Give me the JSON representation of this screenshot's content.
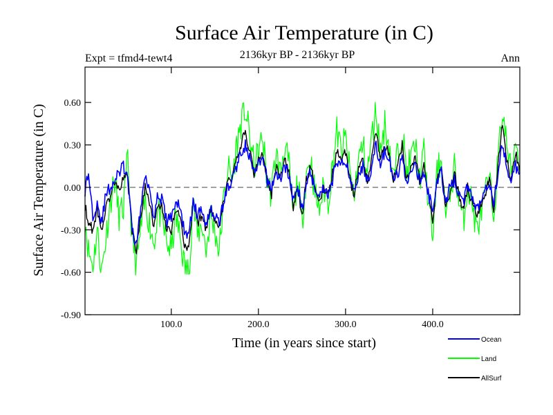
{
  "chart_data": {
    "type": "line",
    "title": "Surface Air Temperature (in C)",
    "subtitle": "2136kyr BP - 2136kyr BP",
    "expt_label": "Expt = tfmd4-tewt4",
    "season_label": "Ann",
    "xlabel": "Time (in years since start)",
    "ylabel": "Surface Air Temperature (in C)",
    "xlim": [
      1,
      500
    ],
    "ylim": [
      -0.9,
      0.85
    ],
    "xticks": [
      100,
      200,
      300,
      400
    ],
    "xtick_labels": [
      "100.0",
      "200.0",
      "300.0",
      "400.0"
    ],
    "yticks": [
      -0.9,
      -0.6,
      -0.3,
      0.0,
      0.3,
      0.6
    ],
    "ytick_labels": [
      "-0.90",
      "-0.60",
      "-0.30",
      "0.00",
      "0.30",
      "0.60"
    ],
    "zero_line": 0.0,
    "series": [
      {
        "name": "Land",
        "color": "#00ff00",
        "x": [
          0,
          5,
          10,
          15,
          20,
          25,
          30,
          35,
          40,
          45,
          50,
          55,
          60,
          65,
          70,
          75,
          80,
          85,
          90,
          95,
          100,
          105,
          110,
          115,
          120,
          125,
          130,
          135,
          140,
          145,
          150,
          155,
          160,
          165,
          170,
          175,
          180,
          185,
          190,
          195,
          200,
          205,
          210,
          215,
          220,
          225,
          230,
          235,
          240,
          245,
          250,
          255,
          260,
          265,
          270,
          275,
          280,
          285,
          290,
          295,
          300,
          305,
          310,
          315,
          320,
          325,
          330,
          335,
          340,
          345,
          350,
          355,
          360,
          365,
          370,
          375,
          380,
          385,
          390,
          395,
          400,
          405,
          410,
          415,
          420,
          425,
          430,
          435,
          440,
          445,
          450,
          455,
          460,
          465,
          470,
          475,
          480,
          485,
          490,
          495,
          500
        ],
        "values": [
          -0.15,
          -0.45,
          -0.55,
          -0.3,
          -0.6,
          -0.35,
          -0.1,
          0.05,
          -0.2,
          -0.15,
          0.2,
          -0.35,
          -0.55,
          -0.3,
          -0.1,
          -0.25,
          -0.4,
          -0.15,
          -0.25,
          -0.4,
          -0.45,
          -0.2,
          -0.35,
          -0.55,
          -0.6,
          -0.1,
          -0.35,
          -0.25,
          -0.45,
          -0.2,
          -0.3,
          -0.45,
          -0.1,
          0.15,
          0.05,
          0.3,
          0.45,
          0.55,
          0.35,
          0.15,
          0.25,
          0.35,
          0.05,
          -0.05,
          0.25,
          0.1,
          0.3,
          0.15,
          -0.2,
          0.05,
          -0.25,
          0.1,
          0.2,
          -0.05,
          -0.15,
          0.0,
          -0.1,
          0.15,
          0.4,
          0.25,
          0.35,
          0.1,
          -0.05,
          0.2,
          0.3,
          0.1,
          0.35,
          0.55,
          0.25,
          0.45,
          0.3,
          0.05,
          0.25,
          0.4,
          0.1,
          0.2,
          0.3,
          0.05,
          0.25,
          -0.1,
          -0.35,
          0.1,
          0.2,
          -0.2,
          -0.05,
          0.15,
          -0.1,
          -0.25,
          0.0,
          -0.1,
          -0.3,
          -0.2,
          -0.05,
          0.05,
          -0.2,
          0.2,
          0.55,
          0.3,
          0.1,
          0.35,
          0.15
        ]
      },
      {
        "name": "Ocean",
        "color": "#0000ff",
        "x": [
          0,
          5,
          10,
          15,
          20,
          25,
          30,
          35,
          40,
          45,
          50,
          55,
          60,
          65,
          70,
          75,
          80,
          85,
          90,
          95,
          100,
          105,
          110,
          115,
          120,
          125,
          130,
          135,
          140,
          145,
          150,
          155,
          160,
          165,
          170,
          175,
          180,
          185,
          190,
          195,
          200,
          205,
          210,
          215,
          220,
          225,
          230,
          235,
          240,
          245,
          250,
          255,
          260,
          265,
          270,
          275,
          280,
          285,
          290,
          295,
          300,
          305,
          310,
          315,
          320,
          325,
          330,
          335,
          340,
          345,
          350,
          355,
          360,
          365,
          370,
          375,
          380,
          385,
          390,
          395,
          400,
          405,
          410,
          415,
          420,
          425,
          430,
          435,
          440,
          445,
          450,
          455,
          460,
          465,
          470,
          475,
          480,
          485,
          490,
          495,
          500
        ],
        "values": [
          -0.05,
          0.1,
          -0.2,
          -0.1,
          -0.25,
          -0.05,
          0.0,
          0.05,
          0.1,
          0.15,
          0.05,
          -0.3,
          -0.4,
          -0.15,
          0.1,
          0.0,
          -0.2,
          -0.05,
          -0.1,
          -0.25,
          -0.2,
          -0.1,
          -0.15,
          -0.3,
          -0.35,
          -0.1,
          -0.2,
          -0.15,
          -0.25,
          -0.15,
          -0.2,
          -0.25,
          -0.1,
          0.0,
          0.05,
          0.15,
          0.25,
          0.3,
          0.2,
          0.1,
          0.15,
          0.2,
          0.05,
          0.0,
          0.1,
          0.05,
          0.15,
          0.1,
          -0.1,
          0.0,
          -0.15,
          0.05,
          0.1,
          0.0,
          -0.05,
          0.0,
          -0.05,
          0.05,
          0.2,
          0.15,
          0.2,
          0.05,
          0.0,
          0.1,
          0.15,
          0.05,
          0.15,
          0.3,
          0.15,
          0.25,
          0.2,
          0.05,
          0.1,
          0.2,
          0.05,
          0.1,
          0.15,
          0.05,
          0.1,
          -0.05,
          -0.15,
          0.05,
          0.1,
          -0.1,
          0.0,
          0.05,
          -0.05,
          -0.1,
          0.0,
          -0.05,
          -0.15,
          -0.1,
          0.0,
          0.05,
          -0.1,
          0.1,
          0.3,
          0.15,
          0.05,
          0.15,
          0.1
        ]
      },
      {
        "name": "AllSurf",
        "color": "#000000",
        "x": [
          0,
          5,
          10,
          15,
          20,
          25,
          30,
          35,
          40,
          45,
          50,
          55,
          60,
          65,
          70,
          75,
          80,
          85,
          90,
          95,
          100,
          105,
          110,
          115,
          120,
          125,
          130,
          135,
          140,
          145,
          150,
          155,
          160,
          165,
          170,
          175,
          180,
          185,
          190,
          195,
          200,
          205,
          210,
          215,
          220,
          225,
          230,
          235,
          240,
          245,
          250,
          255,
          260,
          265,
          270,
          275,
          280,
          285,
          290,
          295,
          300,
          305,
          310,
          315,
          320,
          325,
          330,
          335,
          340,
          345,
          350,
          355,
          360,
          365,
          370,
          375,
          380,
          385,
          390,
          395,
          400,
          405,
          410,
          415,
          420,
          425,
          430,
          435,
          440,
          445,
          450,
          455,
          460,
          465,
          470,
          475,
          480,
          485,
          490,
          495,
          500
        ],
        "values": [
          -0.1,
          -0.25,
          -0.3,
          -0.15,
          -0.3,
          -0.15,
          -0.05,
          0.05,
          0.0,
          0.05,
          0.1,
          -0.3,
          -0.45,
          -0.2,
          0.0,
          -0.1,
          -0.3,
          -0.1,
          -0.15,
          -0.3,
          -0.3,
          -0.15,
          -0.2,
          -0.4,
          -0.45,
          -0.1,
          -0.25,
          -0.2,
          -0.3,
          -0.15,
          -0.25,
          -0.3,
          -0.1,
          0.05,
          0.05,
          0.2,
          0.3,
          0.4,
          0.25,
          0.1,
          0.2,
          0.25,
          0.05,
          -0.05,
          0.15,
          0.05,
          0.2,
          0.1,
          -0.15,
          0.0,
          -0.2,
          0.05,
          0.15,
          0.0,
          -0.1,
          0.0,
          -0.05,
          0.1,
          0.25,
          0.2,
          0.25,
          0.05,
          -0.05,
          0.15,
          0.2,
          0.05,
          0.2,
          0.4,
          0.2,
          0.3,
          0.25,
          0.05,
          0.15,
          0.3,
          0.05,
          0.15,
          0.2,
          0.05,
          0.15,
          -0.05,
          -0.25,
          0.05,
          0.15,
          -0.15,
          -0.05,
          0.1,
          -0.05,
          -0.15,
          0.0,
          -0.1,
          -0.2,
          -0.15,
          -0.05,
          0.05,
          -0.15,
          0.15,
          0.45,
          0.2,
          0.05,
          0.25,
          0.1
        ]
      }
    ],
    "legend": [
      "Ocean",
      "Land",
      "AllSurf"
    ],
    "legend_position": "bottom-right"
  }
}
